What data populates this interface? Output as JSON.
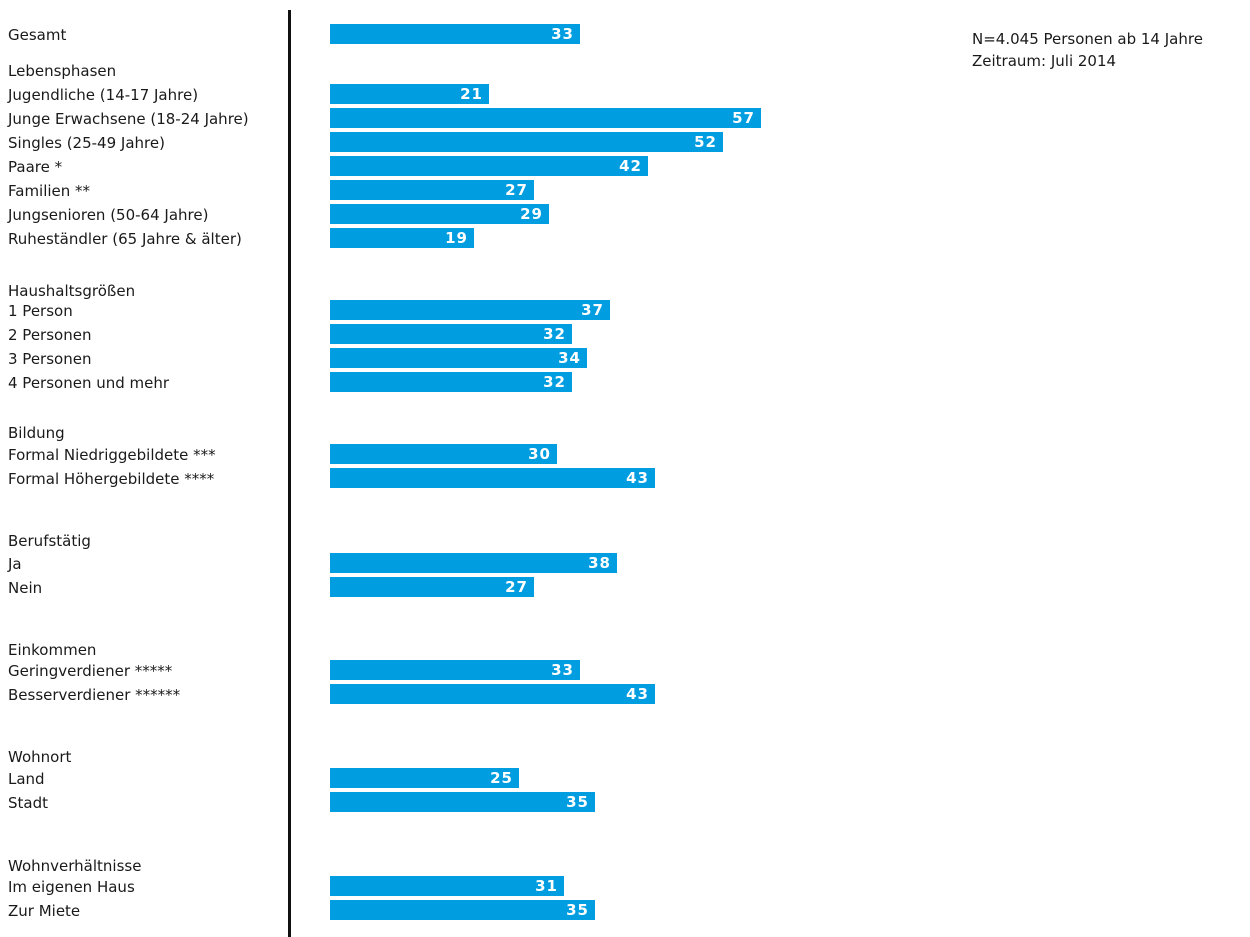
{
  "notes": [
    "N=4.045 Personen ab 14 Jahre",
    "Zeitraum: Juli 2014"
  ],
  "colors": {
    "bar": "#009de0",
    "bar_text": "#ffffff",
    "axis": "#111111"
  },
  "chart_data": {
    "type": "bar",
    "orientation": "horizontal",
    "title": "",
    "xlabel": "",
    "ylabel": "",
    "xlim": [
      0,
      57
    ],
    "grid": false,
    "legend": "none",
    "groups": [
      {
        "header": "",
        "categories": [
          "Gesamt"
        ],
        "values": [
          33
        ]
      },
      {
        "header": "Lebensphasen",
        "categories": [
          "Jugendliche (14-17 Jahre)",
          "Junge Erwachsene (18-24 Jahre)",
          "Singles (25-49 Jahre)",
          "Paare *",
          "Familien **",
          "Jungsenioren (50-64 Jahre)",
          "Ruheständler (65 Jahre & älter)"
        ],
        "values": [
          21,
          57,
          52,
          42,
          27,
          29,
          19
        ]
      },
      {
        "header": "Haushaltsgrößen",
        "categories": [
          "1 Person",
          "2 Personen",
          "3 Personen",
          "4 Personen und mehr"
        ],
        "values": [
          37,
          32,
          34,
          32
        ]
      },
      {
        "header": "Bildung",
        "categories": [
          "Formal Niedriggebildete ***",
          "Formal Höhergebildete ****"
        ],
        "values": [
          30,
          43
        ]
      },
      {
        "header": "Berufstätig",
        "categories": [
          "Ja",
          "Nein"
        ],
        "values": [
          38,
          27
        ]
      },
      {
        "header": "Einkommen",
        "categories": [
          "Geringverdiener *****",
          "Besserverdiener ******"
        ],
        "values": [
          33,
          43
        ]
      },
      {
        "header": "Wohnort",
        "categories": [
          "Land",
          "Stadt"
        ],
        "values": [
          25,
          35
        ]
      },
      {
        "header": "Wohnverhältnisse",
        "categories": [
          "Im eigenen Haus",
          "Zur Miete"
        ],
        "values": [
          31,
          35
        ]
      }
    ]
  }
}
